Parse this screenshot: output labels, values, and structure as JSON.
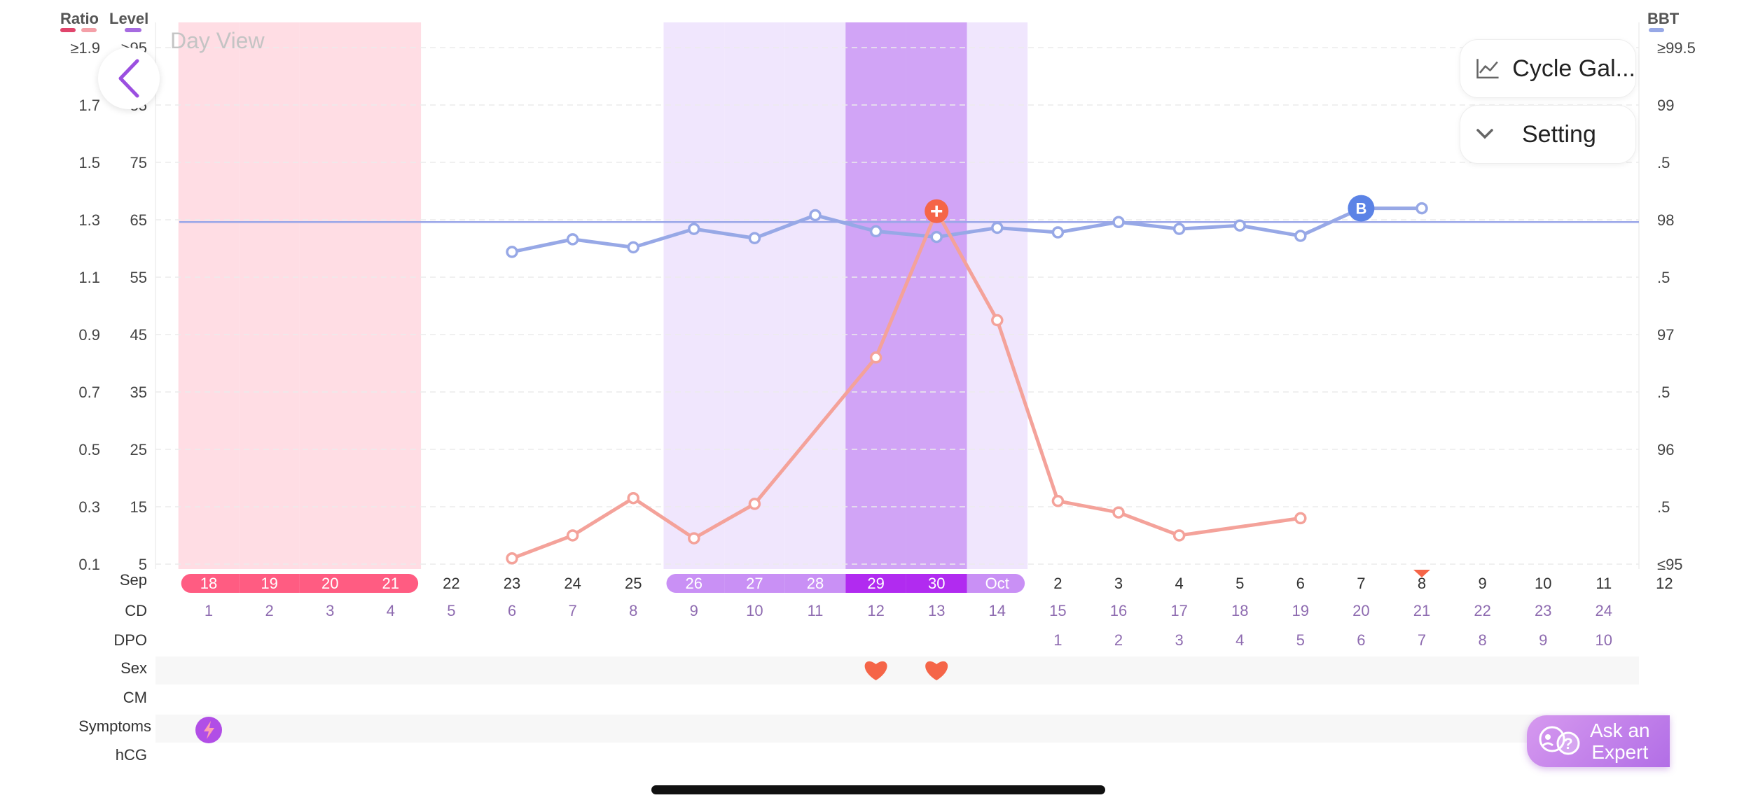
{
  "screen": {
    "title": "Day View"
  },
  "legend": {
    "ratio_label": "Ratio",
    "level_label": "Level",
    "bbt_label": "BBT"
  },
  "colors": {
    "period": "#ff5c82",
    "fertile_light": "#c990f5",
    "ovulation": "#b12bf0",
    "bbt_line": "#97a8e6",
    "lh_line": "#f4a29a",
    "peak_marker": "#f56548",
    "cover_line": "#9aa6e8",
    "cd_text": "#8e6bb0"
  },
  "axes": {
    "ratio_ticks": [
      "≥1.9",
      "1.7",
      "1.5",
      "1.3",
      "1.1",
      "0.9",
      "0.7",
      "0.5",
      "0.3",
      "0.1"
    ],
    "level_ticks": [
      ">95",
      "85",
      "75",
      "65",
      "55",
      "45",
      "35",
      "25",
      "15",
      "5"
    ],
    "bbt_ticks": [
      "≥99.5",
      "99",
      ".5",
      "98",
      ".5",
      "97",
      ".5",
      "96",
      ".5",
      "≤95"
    ]
  },
  "rows": {
    "month_label": "Sep",
    "cd_label": "CD",
    "dpo_label": "DPO",
    "sex_label": "Sex",
    "cm_label": "CM",
    "symptoms_label": "Symptoms",
    "hcg_label": "hCG"
  },
  "chart_data": {
    "type": "line",
    "title": "Day View",
    "x": [
      "18",
      "19",
      "20",
      "21",
      "22",
      "23",
      "24",
      "25",
      "26",
      "27",
      "28",
      "29",
      "30",
      "Oct",
      "2",
      "3",
      "4",
      "5",
      "6",
      "7",
      "8",
      "9",
      "10",
      "11",
      "12"
    ],
    "cd": [
      "1",
      "2",
      "3",
      "4",
      "5",
      "6",
      "7",
      "8",
      "9",
      "10",
      "11",
      "12",
      "13",
      "14",
      "15",
      "16",
      "17",
      "18",
      "19",
      "20",
      "21",
      "22",
      "23",
      "24",
      ""
    ],
    "dpo": [
      "",
      "",
      "",
      "",
      "",
      "",
      "",
      "",
      "",
      "",
      "",
      "",
      "",
      "",
      "1",
      "2",
      "3",
      "4",
      "5",
      "6",
      "7",
      "8",
      "9",
      "10",
      ""
    ],
    "day_status": [
      "period",
      "period",
      "period",
      "period",
      "none",
      "none",
      "none",
      "none",
      "fertile",
      "fertile",
      "fertile",
      "ovulation",
      "ovulation",
      "fertile",
      "none",
      "none",
      "none",
      "none",
      "none",
      "none",
      "none",
      "none",
      "none",
      "none",
      "none"
    ],
    "series": [
      {
        "name": "BBT",
        "axis": "right",
        "values": [
          null,
          null,
          null,
          null,
          null,
          97.72,
          97.83,
          97.76,
          97.92,
          97.84,
          98.04,
          97.9,
          97.85,
          97.93,
          97.89,
          97.98,
          97.92,
          97.95,
          97.86,
          98.1,
          98.1,
          null,
          null,
          null,
          null
        ]
      },
      {
        "name": "LH",
        "axis": "left",
        "values": [
          null,
          null,
          null,
          null,
          null,
          0.12,
          0.2,
          0.33,
          0.19,
          0.31,
          null,
          0.82,
          1.33,
          0.95,
          0.32,
          0.28,
          0.2,
          null,
          0.26,
          null,
          null,
          null,
          null,
          null,
          null
        ]
      }
    ],
    "cover_line": 97.98,
    "peak_index": 12,
    "bbt_marker_index": 19,
    "bbt_marker_label": "B",
    "today_index": 20,
    "sex_days": [
      11,
      12
    ],
    "symptom_days": [
      0
    ],
    "ratio_range": [
      0.1,
      1.9
    ],
    "level_range": [
      5,
      95
    ],
    "bbt_range": [
      95,
      99.5
    ],
    "xlabel": "Sep",
    "ylabel_left": "Ratio / Level",
    "ylabel_right": "BBT"
  },
  "buttons": {
    "gallery_label": "Cycle Gal...",
    "setting_label": "Setting"
  },
  "ask_expert": {
    "line1": "Ask an",
    "line2": "Expert"
  }
}
